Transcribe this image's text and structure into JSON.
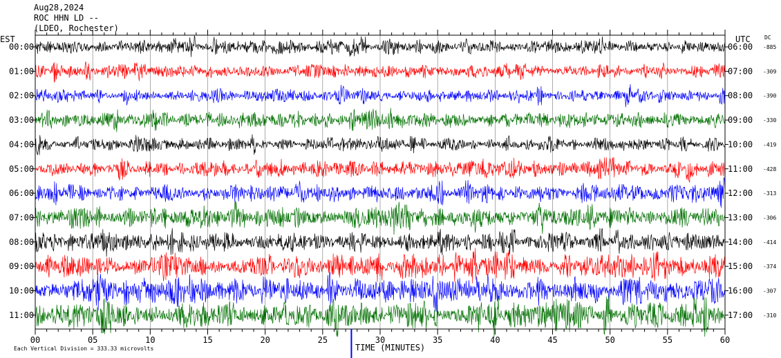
{
  "header": {
    "date": "Aug28,2024",
    "station": "ROC HHN LD --",
    "network": "(LDEO, Rochester)"
  },
  "labels": {
    "left_tz": "EST",
    "right_tz": "UTC",
    "dc": "DC",
    "xlabel": "TIME (MINUTES)",
    "footnote": "Each Vertical Division =  333.33 microvolts"
  },
  "colors": {
    "trace_cycle": [
      "#000000",
      "#ff0000",
      "#0000ff",
      "#007000"
    ],
    "frame": "#000000",
    "minute_marker": "#0000ff"
  },
  "chart_data": {
    "type": "line",
    "description_kind": "helicorder",
    "x_range": [
      0,
      60
    ],
    "x_ticks": [
      0,
      5,
      10,
      15,
      20,
      25,
      30,
      35,
      40,
      45,
      50,
      55,
      60
    ],
    "x_tick_labels": [
      "00",
      "05",
      "10",
      "15",
      "20",
      "25",
      "30",
      "35",
      "40",
      "45",
      "50",
      "55",
      "60"
    ],
    "marker_minute": 27.5,
    "rows": [
      {
        "est": "00:00",
        "utc": "06:00",
        "dc": "-885",
        "amp": 0.55
      },
      {
        "est": "01:00",
        "utc": "07:00",
        "dc": "-309",
        "amp": 0.55
      },
      {
        "est": "02:00",
        "utc": "08:00",
        "dc": "-390",
        "amp": 0.55
      },
      {
        "est": "03:00",
        "utc": "09:00",
        "dc": "-330",
        "amp": 0.6
      },
      {
        "est": "04:00",
        "utc": "10:00",
        "dc": "-419",
        "amp": 0.55
      },
      {
        "est": "05:00",
        "utc": "11:00",
        "dc": "-428",
        "amp": 0.65
      },
      {
        "est": "06:00",
        "utc": "12:00",
        "dc": "-313",
        "amp": 0.75
      },
      {
        "est": "07:00",
        "utc": "13:00",
        "dc": "-306",
        "amp": 0.85
      },
      {
        "est": "08:00",
        "utc": "14:00",
        "dc": "-414",
        "amp": 0.8
      },
      {
        "est": "09:00",
        "utc": "15:00",
        "dc": "-374",
        "amp": 0.95
      },
      {
        "est": "10:00",
        "utc": "16:00",
        "dc": "-307",
        "amp": 1.0
      },
      {
        "est": "11:00",
        "utc": "17:00",
        "dc": "-310",
        "amp": 1.1
      }
    ]
  }
}
